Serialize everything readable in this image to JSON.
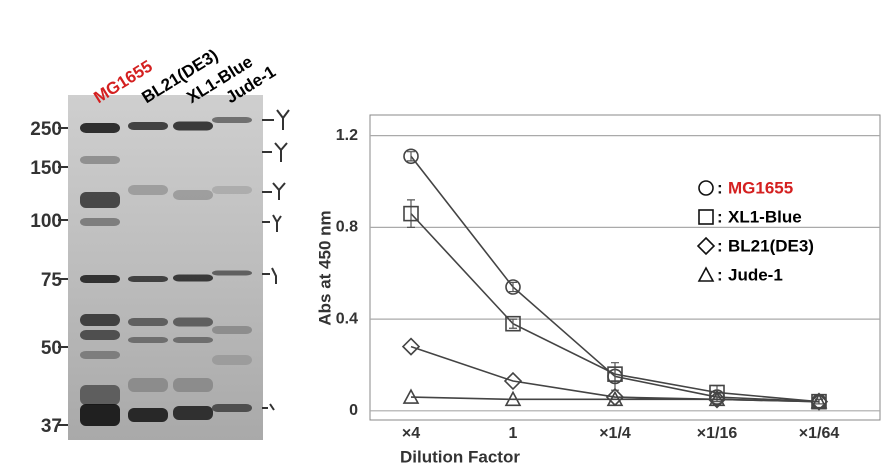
{
  "blot": {
    "lanes": [
      "MG1655",
      "BL21(DE3)",
      "XL1-Blue",
      "Jude-1"
    ],
    "lane_colors": [
      "#d42020",
      "#000000",
      "#000000",
      "#000000"
    ],
    "markers": [
      250,
      150,
      100,
      75,
      50,
      37
    ]
  },
  "chart_data": {
    "type": "line",
    "x_label": "Dilution Factor",
    "y_label": "Abs at 450 nm",
    "categories": [
      "×4",
      "1",
      "×1/4",
      "×1/16",
      "×1/64"
    ],
    "legend_separator": ":",
    "series": [
      {
        "name": "MG1655",
        "color": "#444444",
        "label_color": "#d42020",
        "marker": "circle",
        "values": [
          1.11,
          0.54,
          0.15,
          0.06,
          0.04
        ],
        "errors": [
          0.02,
          0.02,
          0.06,
          0.02,
          0.01
        ]
      },
      {
        "name": "XL1-Blue",
        "color": "#444444",
        "label_color": "#000000",
        "marker": "square",
        "values": [
          0.86,
          0.38,
          0.16,
          0.08,
          0.04
        ],
        "errors": [
          0.06,
          0.02,
          0.03,
          0.03,
          0.01
        ]
      },
      {
        "name": "BL21(DE3)",
        "color": "#444444",
        "label_color": "#000000",
        "marker": "diamond",
        "values": [
          0.28,
          0.13,
          0.06,
          0.05,
          0.04
        ]
      },
      {
        "name": "Jude-1",
        "color": "#444444",
        "label_color": "#000000",
        "marker": "triangle",
        "values": [
          0.06,
          0.05,
          0.05,
          0.05,
          0.04
        ]
      }
    ],
    "ylim": [
      -0.04,
      1.29
    ],
    "yticks": [
      0,
      0.4,
      0.8,
      1.2
    ],
    "grid": true
  }
}
